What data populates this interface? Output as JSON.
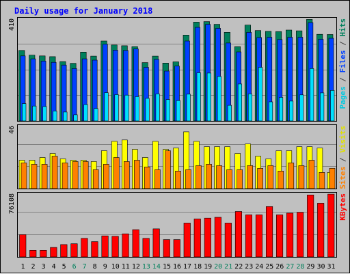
{
  "chart_data": [
    {
      "type": "bar",
      "panel": "hits_files_pages",
      "title": "Daily usage for January 2018",
      "ymax_label": "410",
      "right_labels": [
        {
          "text": "Pages",
          "color": "#00c8e0"
        },
        {
          "text": " / ",
          "color": "#404040"
        },
        {
          "text": "Files",
          "color": "#0040ff"
        },
        {
          "text": " / ",
          "color": "#404040"
        },
        {
          "text": "Hits",
          "color": "#00805c"
        }
      ],
      "ylim": [
        0,
        410
      ],
      "categories": [
        "1",
        "2",
        "3",
        "4",
        "5",
        "6",
        "7",
        "8",
        "9",
        "10",
        "11",
        "12",
        "13",
        "14",
        "15",
        "16",
        "17",
        "18",
        "19",
        "20",
        "21",
        "22",
        "23",
        "24",
        "25",
        "26",
        "27",
        "28",
        "29",
        "30",
        "31"
      ],
      "series": [
        {
          "name": "Hits",
          "color": "#00805c",
          "values": [
            284,
            265,
            262,
            259,
            239,
            232,
            277,
            261,
            322,
            306,
            303,
            299,
            235,
            261,
            233,
            238,
            346,
            398,
            400,
            389,
            357,
            299,
            386,
            364,
            361,
            360,
            366,
            363,
            409,
            349,
            348
          ]
        },
        {
          "name": "Files",
          "color": "#0040ff",
          "values": [
            262,
            250,
            241,
            236,
            225,
            211,
            250,
            245,
            309,
            285,
            284,
            290,
            216,
            248,
            201,
            221,
            322,
            377,
            389,
            373,
            314,
            278,
            357,
            336,
            337,
            328,
            337,
            337,
            396,
            329,
            333
          ]
        },
        {
          "name": "Pages",
          "color": "#00e0ff",
          "values": [
            70,
            60,
            58,
            40,
            36,
            25,
            66,
            50,
            114,
            106,
            104,
            98,
            91,
            109,
            86,
            82,
            108,
            194,
            193,
            179,
            63,
            149,
            109,
            216,
            77,
            95,
            80,
            105,
            211,
            113,
            123
          ]
        }
      ]
    },
    {
      "type": "bar",
      "panel": "visits_sites",
      "ymax_label": "46",
      "right_labels": [
        {
          "text": "Sites",
          "color": "#ff8000"
        },
        {
          "text": " / ",
          "color": "#404040"
        },
        {
          "text": "Visits",
          "color": "#e0e000"
        }
      ],
      "ylim": [
        0,
        46
      ],
      "categories": [
        "1",
        "2",
        "3",
        "4",
        "5",
        "6",
        "7",
        "8",
        "9",
        "10",
        "11",
        "12",
        "13",
        "14",
        "15",
        "16",
        "17",
        "18",
        "19",
        "20",
        "21",
        "22",
        "23",
        "24",
        "25",
        "26",
        "27",
        "28",
        "29",
        "30",
        "31"
      ],
      "series": [
        {
          "name": "Visits",
          "color": "#ffff00",
          "values": [
            21,
            21,
            23,
            26,
            22,
            21,
            21,
            20,
            28,
            35,
            36,
            29,
            23,
            35,
            29,
            30,
            42,
            35,
            31,
            31,
            31,
            26,
            33,
            24,
            22,
            28,
            28,
            31,
            31,
            30,
            12
          ]
        },
        {
          "name": "Sites",
          "color": "#ff8000",
          "values": [
            19,
            18,
            18,
            24,
            19,
            20,
            20,
            14,
            18,
            23,
            20,
            21,
            16,
            14,
            28,
            13,
            14,
            17,
            18,
            17,
            14,
            14,
            17,
            15,
            17,
            13,
            19,
            17,
            21,
            12,
            15
          ]
        }
      ]
    },
    {
      "type": "bar",
      "panel": "kbytes",
      "ymax_label": "76108",
      "right_labels": [
        {
          "text": "KBytes",
          "color": "#ff0000"
        }
      ],
      "ylim": [
        0,
        76108
      ],
      "categories": [
        "1",
        "2",
        "3",
        "4",
        "5",
        "6",
        "7",
        "8",
        "9",
        "10",
        "11",
        "12",
        "13",
        "14",
        "15",
        "16",
        "17",
        "18",
        "19",
        "20",
        "21",
        "22",
        "23",
        "24",
        "25",
        "26",
        "27",
        "28",
        "29",
        "30",
        "31"
      ],
      "series": [
        {
          "name": "KBytes",
          "color": "#ff0000",
          "values": [
            27000,
            8000,
            8000,
            11500,
            15000,
            16000,
            22500,
            18500,
            25500,
            25000,
            28000,
            33000,
            22500,
            34000,
            21000,
            21000,
            41000,
            46000,
            47000,
            48000,
            41000,
            55000,
            51000,
            51000,
            61000,
            51000,
            53000,
            54000,
            75000,
            65000,
            76000
          ]
        }
      ]
    }
  ],
  "x_labels": [
    {
      "text": "1",
      "color": "#000000"
    },
    {
      "text": "2",
      "color": "#000000"
    },
    {
      "text": "3",
      "color": "#000000"
    },
    {
      "text": "4",
      "color": "#000000"
    },
    {
      "text": "5",
      "color": "#000000"
    },
    {
      "text": "6",
      "color": "#00805c"
    },
    {
      "text": "7",
      "color": "#00805c"
    },
    {
      "text": "8",
      "color": "#000000"
    },
    {
      "text": "9",
      "color": "#000000"
    },
    {
      "text": "10",
      "color": "#000000"
    },
    {
      "text": "11",
      "color": "#000000"
    },
    {
      "text": "12",
      "color": "#000000"
    },
    {
      "text": "13",
      "color": "#00805c"
    },
    {
      "text": "14",
      "color": "#00805c"
    },
    {
      "text": "15",
      "color": "#000000"
    },
    {
      "text": "16",
      "color": "#000000"
    },
    {
      "text": "17",
      "color": "#000000"
    },
    {
      "text": "18",
      "color": "#000000"
    },
    {
      "text": "19",
      "color": "#000000"
    },
    {
      "text": "20",
      "color": "#00805c"
    },
    {
      "text": "21",
      "color": "#00805c"
    },
    {
      "text": "22",
      "color": "#000000"
    },
    {
      "text": "23",
      "color": "#000000"
    },
    {
      "text": "24",
      "color": "#000000"
    },
    {
      "text": "25",
      "color": "#000000"
    },
    {
      "text": "26",
      "color": "#000000"
    },
    {
      "text": "27",
      "color": "#00805c"
    },
    {
      "text": "28",
      "color": "#00805c"
    },
    {
      "text": "29",
      "color": "#000000"
    },
    {
      "text": "30",
      "color": "#000000"
    },
    {
      "text": "31",
      "color": "#000000"
    }
  ],
  "colors": {
    "background": "#c0c0c0",
    "title": "#0000ff",
    "grid": "#808080",
    "bar_outline": "#000000"
  }
}
